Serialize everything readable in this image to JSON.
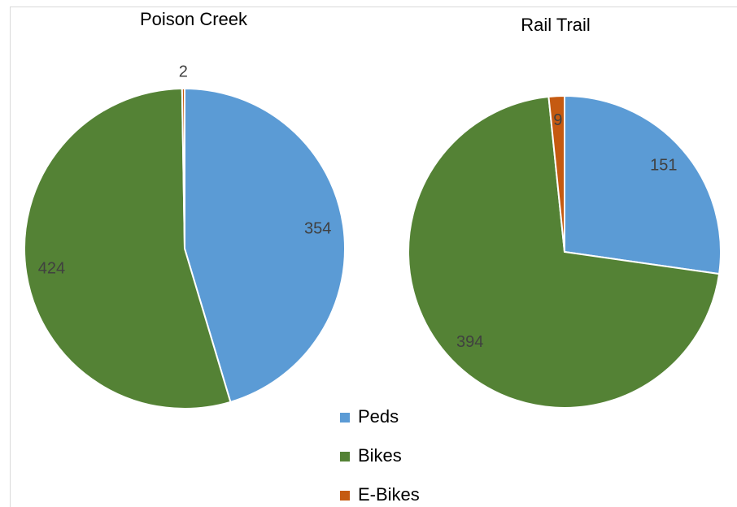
{
  "chart_data": [
    {
      "type": "pie",
      "title": "Poison Creek",
      "categories": [
        "Peds",
        "Bikes",
        "E-Bikes"
      ],
      "values": [
        354,
        424,
        2
      ],
      "colors": [
        "#5b9bd5",
        "#548235",
        "#c55a11"
      ]
    },
    {
      "type": "pie",
      "title": "Rail Trail",
      "categories": [
        "Peds",
        "Bikes",
        "E-Bikes"
      ],
      "values": [
        151,
        394,
        9
      ],
      "colors": [
        "#5b9bd5",
        "#548235",
        "#c55a11"
      ]
    }
  ]
}
